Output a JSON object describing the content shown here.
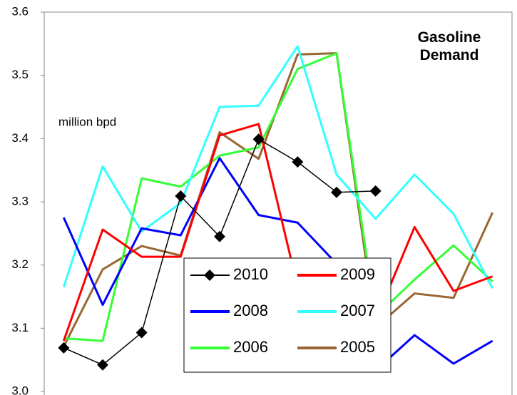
{
  "chart_data": {
    "type": "line",
    "title": "Gasoline Demand",
    "annotation": "million bpd",
    "categories": [
      null,
      null,
      null,
      null,
      null,
      null,
      null,
      null,
      null,
      null,
      null,
      null
    ],
    "ylim": [
      3.0,
      3.6
    ],
    "yticks": [
      {
        "value": 3.0,
        "label": "3.0"
      },
      3.1,
      3.2,
      3.3,
      3.4,
      3.5,
      3.6
    ],
    "grid": false,
    "series": [
      {
        "name": "2010",
        "color": "#000000",
        "line_width": 1.5,
        "marker": "diamond",
        "values": [
          3.069,
          3.042,
          3.093,
          3.309,
          3.245,
          3.399,
          3.363,
          3.315,
          3.317,
          null,
          null,
          null
        ]
      },
      {
        "name": "2009",
        "color": "#ff0000",
        "line_width": 3,
        "marker": null,
        "values": [
          3.08,
          3.256,
          3.213,
          3.213,
          3.405,
          3.423,
          3.166,
          3.19,
          3.112,
          3.26,
          3.159,
          3.182
        ]
      },
      {
        "name": "2008",
        "color": "#0000ff",
        "line_width": 3,
        "marker": null,
        "values": [
          3.275,
          3.137,
          3.258,
          3.247,
          3.369,
          3.279,
          3.267,
          3.202,
          3.033,
          3.089,
          3.044,
          3.08
        ]
      },
      {
        "name": "2007",
        "color": "#33ffff",
        "line_width": 3,
        "marker": null,
        "values": [
          3.165,
          3.356,
          3.253,
          3.298,
          3.45,
          3.452,
          3.546,
          3.343,
          3.273,
          3.343,
          3.281,
          3.163
        ]
      },
      {
        "name": "2006",
        "color": "#33ff33",
        "line_width": 3,
        "marker": null,
        "values": [
          3.084,
          3.08,
          3.337,
          3.324,
          3.373,
          3.386,
          3.51,
          3.535,
          3.118,
          3.177,
          3.231,
          3.174
        ]
      },
      {
        "name": "2005",
        "color": "#996633",
        "line_width": 3,
        "marker": null,
        "values": [
          3.071,
          3.193,
          3.23,
          3.215,
          3.41,
          3.368,
          3.533,
          3.535,
          3.101,
          3.155,
          3.148,
          3.283
        ]
      }
    ]
  }
}
